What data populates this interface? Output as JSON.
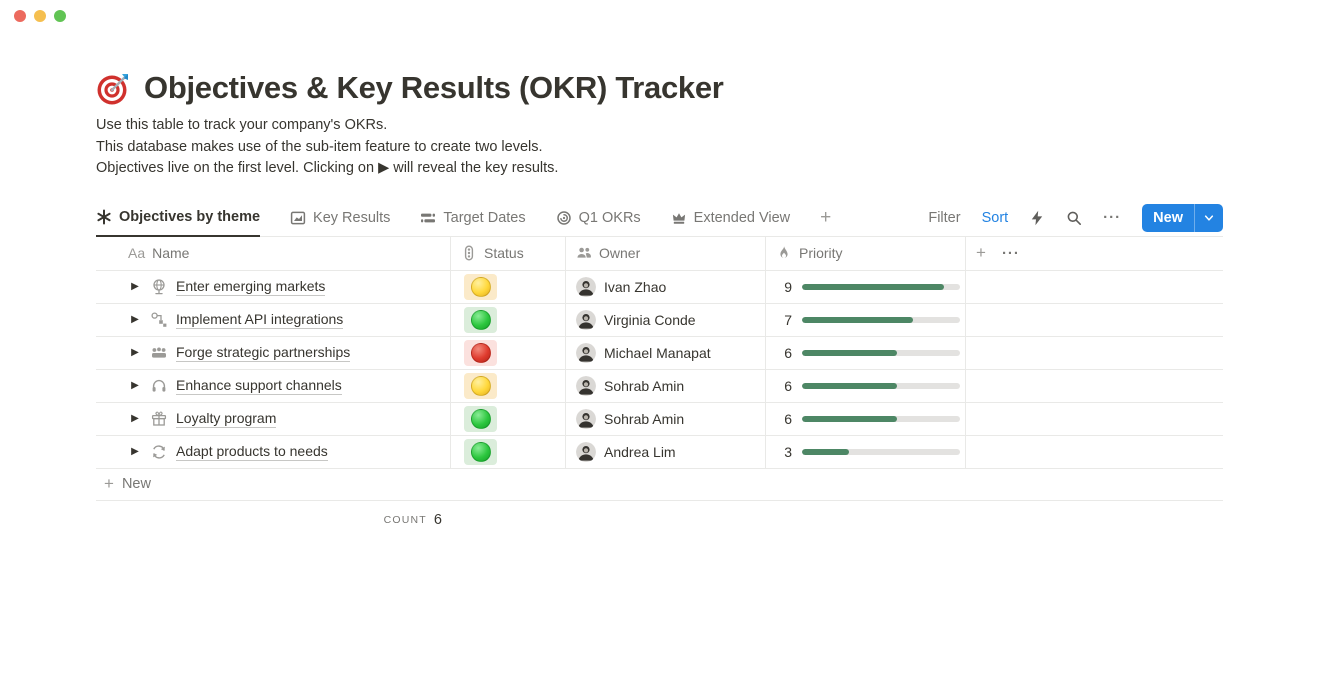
{
  "window": {
    "traffic_lights": [
      {
        "name": "close-button",
        "color": "#EC6A5E"
      },
      {
        "name": "minimize-button",
        "color": "#F5BF4F"
      },
      {
        "name": "zoom-button",
        "color": "#61C454"
      }
    ]
  },
  "page": {
    "icon": "target-dart-emoji",
    "title": "Objectives & Key Results (OKR) Tracker",
    "description_lines": [
      "Use this table to track your company's OKRs.",
      "This database makes use of the sub-item feature to create two levels.",
      "Objectives live on the first level. Clicking on ▶ will reveal the key results."
    ]
  },
  "tabs": [
    {
      "label": "Objectives by theme",
      "icon": "asterisk-icon",
      "active": true
    },
    {
      "label": "Key Results",
      "icon": "chart-icon",
      "active": false
    },
    {
      "label": "Target Dates",
      "icon": "timeline-icon",
      "active": false
    },
    {
      "label": "Q1 OKRs",
      "icon": "target-icon",
      "active": false
    },
    {
      "label": "Extended View",
      "icon": "crown-icon",
      "active": false
    }
  ],
  "add_view_label": "+",
  "toolbar": {
    "filter_label": "Filter",
    "sort_label": "Sort",
    "icons": [
      "bolt-icon",
      "search-icon",
      "ellipsis-icon"
    ],
    "ellipsis_glyph": "···",
    "new_label": "New",
    "new_button_color": "#2383E2"
  },
  "table": {
    "columns": [
      {
        "icon": "text-icon",
        "label": "Name"
      },
      {
        "icon": "traffic-light-icon",
        "label": "Status"
      },
      {
        "icon": "people-icon",
        "label": "Owner"
      },
      {
        "icon": "flame-icon",
        "label": "Priority"
      }
    ],
    "extra_header": {
      "plus_glyph": "+",
      "ellipsis_glyph": "···"
    },
    "priority_max": 10,
    "priority_bar_color": "#4D8765",
    "status_colors": {
      "yellow": "#FFD83B",
      "green": "#2DC73F",
      "red": "#DF3B2E"
    },
    "rows": [
      {
        "icon": "globe",
        "name": "Enter emerging markets",
        "status": "yellow",
        "owner": "Ivan Zhao",
        "priority": 9
      },
      {
        "icon": "api",
        "name": "Implement API integrations",
        "status": "green",
        "owner": "Virginia Conde",
        "priority": 7
      },
      {
        "icon": "partnership",
        "name": "Forge strategic partnerships",
        "status": "red",
        "owner": "Michael Manapat",
        "priority": 6
      },
      {
        "icon": "headphones",
        "name": "Enhance support channels",
        "status": "yellow",
        "owner": "Sohrab Amin",
        "priority": 6
      },
      {
        "icon": "gift",
        "name": "Loyalty program",
        "status": "green",
        "owner": "Sohrab Amin",
        "priority": 6
      },
      {
        "icon": "cycle",
        "name": "Adapt products to needs",
        "status": "green",
        "owner": "Andrea Lim",
        "priority": 3
      }
    ],
    "new_row_label": "New",
    "footer": {
      "count_label": "COUNT",
      "count_value": "6"
    }
  }
}
